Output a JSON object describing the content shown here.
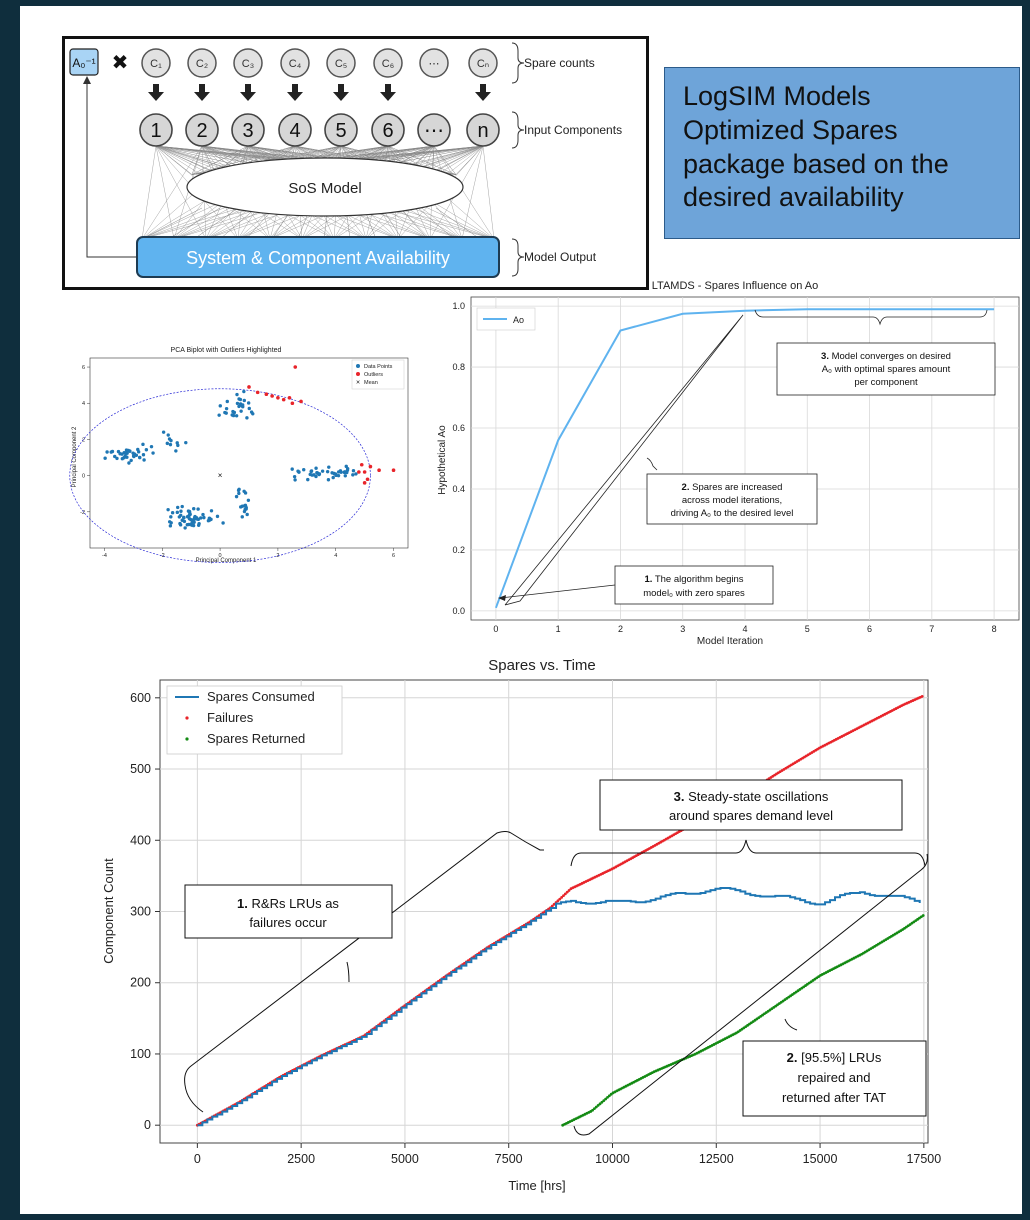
{
  "callout": {
    "lines": [
      "LogSIM Models",
      "Optimized Spares",
      "package based on the",
      "desired availability"
    ]
  },
  "diagram": {
    "a0_inv": "A₀⁻¹",
    "times": "✖",
    "spares": [
      "C₁",
      "C₂",
      "C₃",
      "C₄",
      "C₅",
      "C₆",
      "⋯",
      "Cₙ"
    ],
    "inputs": [
      "1",
      "2",
      "3",
      "4",
      "5",
      "6",
      "⋯",
      "n"
    ],
    "sos_model": "SoS Model",
    "output": "System & Component Availability",
    "labels": {
      "spare_counts": "Spare counts",
      "input_components": "Input Components",
      "model_output": "Model Output"
    }
  },
  "colors": {
    "blue": "#1f77b4",
    "red": "#e8242a",
    "green": "#138a13",
    "light_blue": "#5fb3ef",
    "callout": "#6ea4d9",
    "frame": "#0f2e3d"
  },
  "chart_data": [
    {
      "type": "scatter",
      "title": "PCA Biplot with Outliers Highlighted",
      "xlabel": "Principal Component 1",
      "ylabel": "Principal Component 2",
      "xlim": [
        -4.5,
        6.5
      ],
      "ylim": [
        -4,
        6.5
      ],
      "xticks": [
        "-4",
        "-2",
        "0",
        "2",
        "4",
        "6"
      ],
      "yticks": [
        "-2",
        "0",
        "2",
        "4",
        "6"
      ],
      "legend": [
        "Data Points",
        "Outliers",
        "Mean"
      ],
      "mean": [
        0,
        0
      ],
      "ellipse": {
        "cx": 0,
        "cy": 0,
        "rx": 5.2,
        "ry": 4.8
      },
      "clusters": [
        {
          "cx": -3.0,
          "cy": 1.2,
          "sx": 0.7,
          "sy": 0.35,
          "n": 40
        },
        {
          "cx": -0.9,
          "cy": -2.3,
          "sx": 0.7,
          "sy": 0.45,
          "n": 55
        },
        {
          "cx": 0.8,
          "cy": -1.5,
          "sx": 0.3,
          "sy": 0.6,
          "n": 18
        },
        {
          "cx": 0.6,
          "cy": 3.8,
          "sx": 0.5,
          "sy": 0.6,
          "n": 28
        },
        {
          "cx": 3.8,
          "cy": 0.1,
          "sx": 0.9,
          "sy": 0.3,
          "n": 45
        },
        {
          "cx": -1.6,
          "cy": 2.0,
          "sx": 0.3,
          "sy": 0.5,
          "n": 10
        }
      ],
      "outliers": [
        [
          1.8,
          4.4
        ],
        [
          2.0,
          4.3
        ],
        [
          2.2,
          4.2
        ],
        [
          2.4,
          4.3
        ],
        [
          1.3,
          4.6
        ],
        [
          1.6,
          4.5
        ],
        [
          2.6,
          6.0
        ],
        [
          2.8,
          4.1
        ],
        [
          4.9,
          0.6
        ],
        [
          5.0,
          0.2
        ],
        [
          5.1,
          -0.2
        ],
        [
          5.2,
          0.5
        ],
        [
          5.0,
          -0.4
        ],
        [
          5.5,
          0.3
        ],
        [
          6.0,
          0.3
        ],
        [
          4.8,
          0.2
        ],
        [
          1.0,
          4.9
        ],
        [
          2.5,
          4.0
        ]
      ]
    },
    {
      "type": "line",
      "title": "LTAMDS - Spares Influence on Ao",
      "xlabel": "Model Iteration",
      "ylabel": "Hypothetical Ao",
      "xlim": [
        -0.4,
        8.4
      ],
      "ylim": [
        -0.03,
        1.03
      ],
      "xticks": [
        "0",
        "1",
        "2",
        "3",
        "4",
        "5",
        "6",
        "7",
        "8"
      ],
      "yticks": [
        "0.0",
        "0.2",
        "0.4",
        "0.6",
        "0.8",
        "1.0"
      ],
      "legend": [
        "Ao"
      ],
      "series": [
        {
          "name": "Ao",
          "x": [
            0,
            1,
            2,
            3,
            4,
            5,
            6,
            7,
            8
          ],
          "values": [
            0.01,
            0.56,
            0.92,
            0.975,
            0.985,
            0.99,
            0.99,
            0.99,
            0.99
          ]
        }
      ],
      "annotations": [
        {
          "num": "1.",
          "lines": [
            "The algorithm begins",
            "model₀ with zero spares"
          ]
        },
        {
          "num": "2.",
          "lines": [
            "Spares are increased",
            "across model iterations,",
            "driving A₀ to the desired level"
          ]
        },
        {
          "num": "3.",
          "lines": [
            "Model converges on desired",
            "A₀ with optimal spares amount",
            "per component"
          ]
        }
      ]
    },
    {
      "type": "line",
      "title": "Spares vs. Time",
      "xlabel": "Time [hrs]",
      "ylabel": "Component Count",
      "xlim": [
        -900,
        17600
      ],
      "ylim": [
        -25,
        625
      ],
      "xticks": [
        0,
        2500,
        5000,
        7500,
        10000,
        12500,
        15000,
        17500
      ],
      "yticks": [
        0,
        100,
        200,
        300,
        400,
        500,
        600
      ],
      "legend": [
        "Spares Consumed",
        "Failures",
        "Spares Returned"
      ],
      "series": [
        {
          "name": "Spares Consumed",
          "x": [
            0,
            1000,
            2000,
            3000,
            4000,
            5000,
            6000,
            7000,
            8000,
            8500,
            9000,
            10000,
            11000,
            12000,
            12500,
            13000,
            14000,
            15000,
            16000,
            17000,
            17500
          ],
          "values": [
            0,
            32,
            68,
            98,
            125,
            168,
            210,
            250,
            285,
            305,
            315,
            312,
            318,
            328,
            332,
            328,
            320,
            312,
            328,
            318,
            312
          ]
        },
        {
          "name": "Failures",
          "x": [
            0,
            1000,
            2000,
            3000,
            4000,
            5000,
            6000,
            7000,
            8000,
            8500,
            9000,
            10000,
            11000,
            12000,
            13000,
            14000,
            15000,
            16000,
            17000,
            17500
          ],
          "values": [
            0,
            32,
            68,
            98,
            125,
            168,
            210,
            250,
            285,
            305,
            332,
            360,
            392,
            425,
            458,
            495,
            530,
            560,
            590,
            603
          ]
        },
        {
          "name": "Spares Returned",
          "x": [
            8800,
            9500,
            10000,
            11000,
            12000,
            13000,
            14000,
            15000,
            16000,
            17000,
            17500
          ],
          "values": [
            0,
            20,
            45,
            75,
            100,
            130,
            170,
            210,
            240,
            275,
            295
          ]
        }
      ],
      "annotations": [
        {
          "num": "1.",
          "lines": [
            "R&Rs LRUs as",
            "failures occur"
          ]
        },
        {
          "num": "2.",
          "lines": [
            "[95.5%] LRUs",
            "repaired and",
            "returned after TAT"
          ]
        },
        {
          "num": "3.",
          "lines": [
            "Steady-state oscillations",
            "around spares demand level"
          ]
        }
      ]
    }
  ]
}
